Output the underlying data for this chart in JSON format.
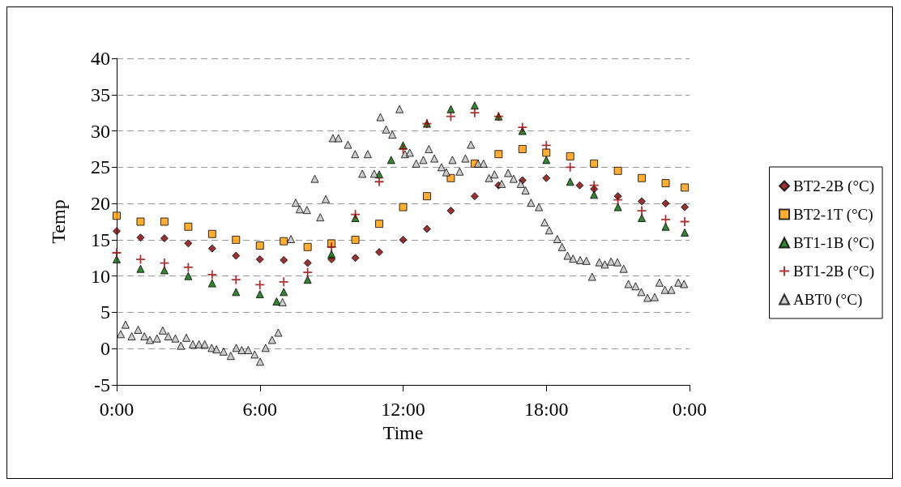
{
  "chart_data": {
    "type": "scatter",
    "xlabel": "Time",
    "ylabel": "Temp",
    "xlim": [
      0,
      24
    ],
    "xticks": [
      {
        "value": 0,
        "label": "0:00"
      },
      {
        "value": 6,
        "label": "6:00"
      },
      {
        "value": 12,
        "label": "12:00"
      },
      {
        "value": 18,
        "label": "18:00"
      },
      {
        "value": 24,
        "label": "0:00"
      }
    ],
    "ylim": [
      -5,
      40
    ],
    "yticks": [
      -5,
      0,
      5,
      10,
      15,
      20,
      25,
      30,
      35,
      40
    ],
    "grid": "y",
    "legend": "right",
    "series": [
      {
        "name": "BT2-2B (°C)",
        "color": "#800000",
        "marker": "diamond",
        "x": [
          0,
          1,
          2,
          3,
          4,
          5,
          6,
          7,
          8,
          9,
          10,
          11,
          12,
          13,
          14,
          15,
          16,
          17,
          18,
          19.4,
          20,
          21,
          22,
          23,
          23.8
        ],
        "values": [
          16.2,
          15.3,
          15.2,
          14.5,
          13.8,
          12.8,
          12.3,
          12.2,
          11.8,
          12.3,
          12.5,
          13.3,
          15,
          16.5,
          19,
          21,
          22.5,
          23.2,
          23.5,
          22.5,
          22,
          21,
          20.3,
          20,
          19.5
        ]
      },
      {
        "name": "BT2-1T (°C)",
        "color": "#ff9900",
        "marker": "square",
        "x": [
          0,
          1,
          2,
          3,
          4,
          5,
          6,
          7,
          8,
          9,
          10,
          11,
          12,
          13,
          14,
          15,
          16,
          17,
          18,
          19,
          20,
          21,
          22,
          23,
          23.8
        ],
        "values": [
          18.3,
          17.5,
          17.5,
          16.8,
          15.8,
          15,
          14.2,
          14.8,
          14,
          14.5,
          15,
          17.2,
          19.5,
          21,
          23.5,
          25.5,
          26.8,
          27.5,
          27,
          26.5,
          25.5,
          24.5,
          23.5,
          22.8,
          22.2
        ]
      },
      {
        "name": "BT1-1B (°C)",
        "color": "#006600",
        "marker": "triangle",
        "x": [
          0,
          1,
          2,
          3,
          4,
          5,
          6,
          6.7,
          7,
          8,
          9,
          10,
          11,
          11.5,
          12,
          13,
          14,
          15,
          16,
          17,
          18,
          19,
          20,
          21,
          22,
          23,
          23.8
        ],
        "values": [
          12.3,
          11,
          10.8,
          10,
          9,
          7.8,
          7.5,
          6.5,
          7.8,
          9.5,
          13,
          18,
          24,
          26,
          28,
          31,
          33,
          33.5,
          32,
          30,
          26,
          23,
          21.2,
          19.5,
          18,
          16.8,
          16
        ]
      },
      {
        "name": "BT1-2B (°C)",
        "color": "#990000",
        "marker": "cross",
        "x": [
          0,
          1,
          2,
          3,
          4,
          5,
          6,
          7,
          8,
          9,
          10,
          11,
          12,
          13,
          14,
          15,
          16,
          17,
          18,
          19,
          20,
          21,
          22,
          23,
          23.8
        ],
        "values": [
          13.2,
          12.3,
          11.8,
          11.2,
          10.2,
          9.5,
          8.8,
          9.2,
          10.5,
          14,
          18.5,
          23,
          27.5,
          31,
          32,
          32.5,
          32,
          30.5,
          28,
          25,
          22.5,
          20.5,
          19,
          17.8,
          17.5
        ]
      },
      {
        "name": "ABT0 (°C)",
        "color": "#c0c0c0",
        "marker": "triangle",
        "x": [
          0.17,
          0.37,
          0.63,
          0.9,
          1.16,
          1.39,
          1.69,
          1.93,
          2.16,
          2.46,
          2.69,
          2.92,
          3.19,
          3.45,
          3.69,
          3.98,
          4.18,
          4.48,
          4.78,
          5.01,
          5.24,
          5.51,
          5.78,
          6.01,
          6.24,
          6.51,
          6.77,
          6.95,
          7.3,
          7.5,
          7.67,
          7.97,
          8.3,
          8.53,
          8.76,
          9.06,
          9.29,
          9.69,
          9.99,
          10.29,
          10.52,
          10.79,
          11.05,
          11.29,
          11.55,
          11.85,
          12.08,
          12.28,
          12.55,
          12.85,
          13.08,
          13.31,
          13.61,
          13.81,
          14.07,
          14.37,
          14.61,
          14.84,
          15.14,
          15.37,
          15.6,
          15.83,
          16.13,
          16.4,
          16.63,
          16.93,
          17.13,
          17.36,
          17.69,
          17.93,
          18.12,
          18.46,
          18.66,
          18.89,
          19.12,
          19.42,
          19.68,
          19.92,
          20.22,
          20.45,
          20.71,
          20.98,
          21.24,
          21.44,
          21.74,
          21.98,
          22.24,
          22.54,
          22.74,
          22.97,
          23.24,
          23.53,
          23.77
        ],
        "values": [
          2,
          3.3,
          1.7,
          2.6,
          1.7,
          1.2,
          1.4,
          2.5,
          1.7,
          1.4,
          0.4,
          1.5,
          0.6,
          0.6,
          0.6,
          0.1,
          -0.1,
          -0.4,
          -1,
          0.1,
          -0.2,
          -0.2,
          -0.8,
          -1.8,
          0.1,
          1.2,
          2.2,
          6.4,
          15.1,
          20.1,
          19.2,
          19.1,
          23.4,
          18.1,
          20.6,
          29,
          29,
          28.1,
          26.8,
          24.1,
          26.8,
          24.1,
          31.9,
          30.2,
          29.5,
          33,
          26.8,
          27,
          25.5,
          26,
          27.5,
          26.2,
          25,
          24.3,
          26,
          24.4,
          26.2,
          28.1,
          25.5,
          25.5,
          23.5,
          24,
          22.7,
          24.2,
          23.4,
          22.7,
          21.8,
          20.1,
          19.5,
          17.4,
          16.3,
          15.1,
          14,
          12.8,
          12.4,
          12.2,
          12.1,
          9.9,
          11.9,
          11.6,
          12,
          11.9,
          11,
          8.9,
          8.6,
          7.8,
          7,
          7.1,
          9.1,
          8.1,
          8.1,
          9.1,
          8.9
        ]
      }
    ]
  }
}
